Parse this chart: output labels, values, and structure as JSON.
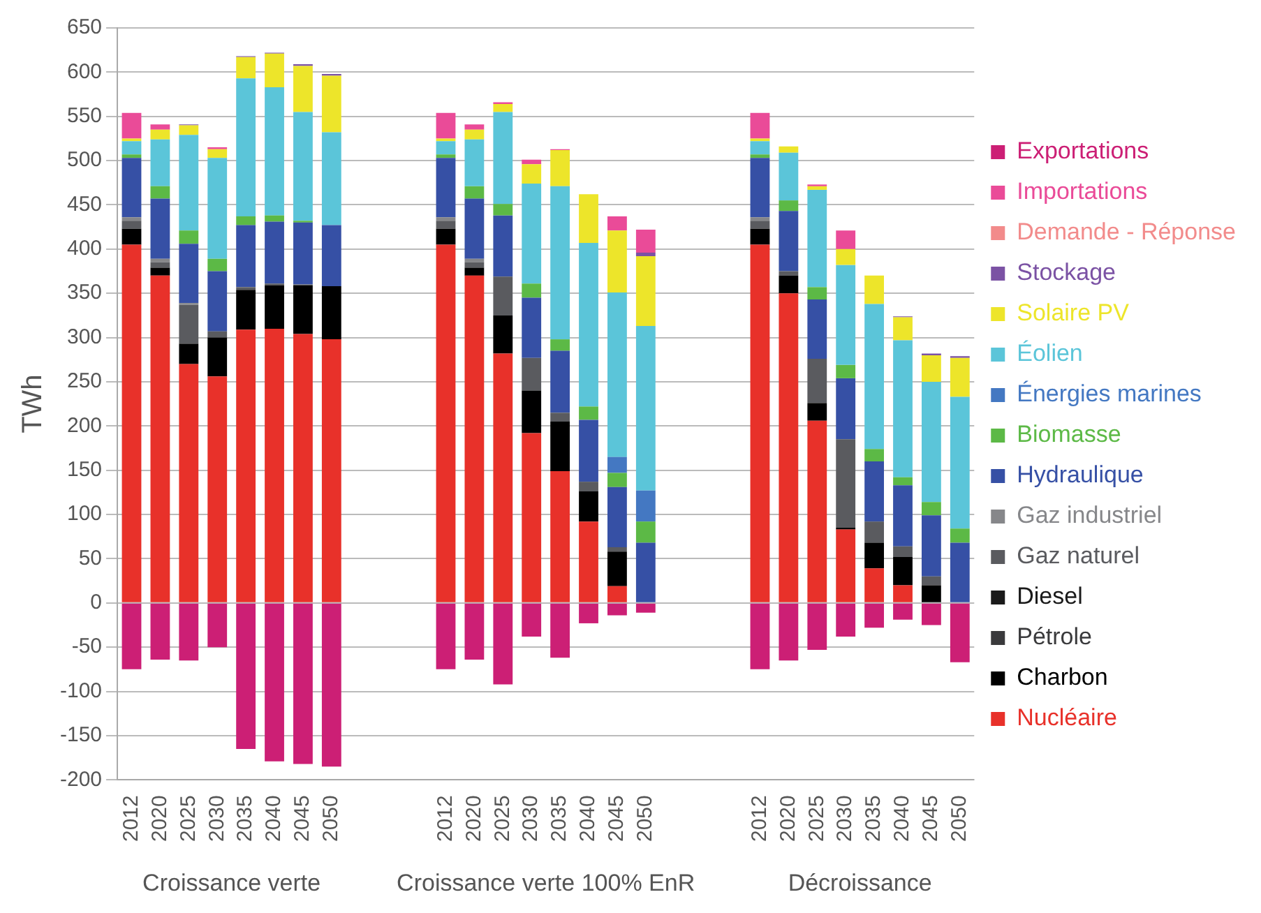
{
  "chart_data": {
    "type": "bar",
    "stacked": true,
    "ylabel": "TWh",
    "grid": "y",
    "legend": "right",
    "categories": [
      "2012",
      "2020",
      "2025",
      "2030",
      "2035",
      "2040",
      "2045",
      "2050",
      null,
      null,
      null,
      "2012",
      "2020",
      "2025",
      "2030",
      "2035",
      "2040",
      "2045",
      "2050",
      null,
      null,
      null,
      "2012",
      "2020",
      "2025",
      "2030",
      "2035",
      "2040",
      "2045",
      "2050"
    ],
    "ylim": [
      -200,
      650
    ],
    "yticks": [
      -200,
      -150,
      -100,
      -50,
      0,
      50,
      100,
      150,
      200,
      250,
      300,
      350,
      400,
      450,
      500,
      550,
      600,
      650
    ],
    "annotations": [
      "Croissance verte",
      "Croissance verte 100% EnR",
      "Décroissance"
    ],
    "series": [
      {
        "name": "Nucléaire",
        "color": "#e8312a",
        "values": [
          405,
          370,
          270,
          256,
          309,
          310,
          304,
          298,
          null,
          null,
          null,
          405,
          370,
          282,
          192,
          149,
          92,
          19,
          null,
          null,
          null,
          null,
          405,
          350,
          206,
          83,
          39,
          20,
          null,
          null
        ]
      },
      {
        "name": "Charbon",
        "color": "#000000",
        "values": [
          18,
          9,
          23,
          44,
          45,
          49,
          55,
          60,
          null,
          null,
          null,
          18,
          9,
          43,
          48,
          56,
          34,
          39,
          null,
          null,
          null,
          null,
          18,
          20,
          20,
          2,
          29,
          32,
          20,
          null
        ]
      },
      {
        "name": "Pétrole",
        "color": "#3a3a3c",
        "values": [
          null,
          null,
          null,
          null,
          null,
          null,
          null,
          null,
          null,
          null,
          null,
          null,
          null,
          null,
          null,
          null,
          null,
          null,
          null,
          null,
          null,
          null,
          null,
          null,
          null,
          null,
          null,
          null,
          null,
          null
        ]
      },
      {
        "name": "Diesel",
        "color": "#1a1a1a",
        "values": [
          null,
          null,
          null,
          null,
          null,
          null,
          null,
          null,
          null,
          null,
          null,
          null,
          null,
          null,
          null,
          null,
          null,
          null,
          null,
          null,
          null,
          null,
          null,
          null,
          null,
          null,
          null,
          null,
          null,
          null
        ]
      },
      {
        "name": "Gaz naturel",
        "color": "#5a5b5f",
        "values": [
          9,
          6,
          44,
          7,
          3,
          2,
          1,
          null,
          null,
          null,
          null,
          9,
          6,
          44,
          37,
          10,
          11,
          5,
          null,
          null,
          null,
          null,
          9,
          5,
          50,
          100,
          24,
          12,
          10,
          null
        ]
      },
      {
        "name": "Gaz industriel",
        "color": "#86878a",
        "values": [
          4,
          4,
          2,
          null,
          null,
          null,
          null,
          null,
          null,
          null,
          null,
          4,
          4,
          null,
          null,
          null,
          null,
          null,
          null,
          null,
          null,
          null,
          4,
          null,
          null,
          null,
          null,
          null,
          null,
          null
        ]
      },
      {
        "name": "Hydraulique",
        "color": "#3650a5",
        "values": [
          67,
          68,
          67,
          68,
          70,
          70,
          70,
          69,
          null,
          null,
          null,
          67,
          68,
          69,
          68,
          70,
          70,
          68,
          68,
          null,
          null,
          null,
          67,
          68,
          67,
          69,
          68,
          69,
          69,
          68
        ]
      },
      {
        "name": "Biomasse",
        "color": "#5cb946",
        "values": [
          4,
          14,
          15,
          14,
          10,
          7,
          2,
          null,
          null,
          null,
          null,
          4,
          14,
          13,
          16,
          13,
          15,
          16,
          24,
          null,
          null,
          null,
          4,
          12,
          14,
          15,
          14,
          9,
          15,
          16
        ]
      },
      {
        "name": "Énergies marines",
        "color": "#4478c2",
        "values": [
          null,
          null,
          null,
          null,
          null,
          null,
          null,
          null,
          null,
          null,
          null,
          null,
          null,
          null,
          null,
          null,
          null,
          18,
          35,
          null,
          null,
          null,
          null,
          null,
          null,
          null,
          null,
          null,
          null,
          null
        ]
      },
      {
        "name": "Éolien",
        "color": "#5bc5d9",
        "values": [
          15,
          53,
          108,
          114,
          156,
          145,
          123,
          105,
          null,
          null,
          null,
          15,
          53,
          104,
          113,
          173,
          185,
          186,
          186,
          null,
          null,
          null,
          15,
          54,
          110,
          113,
          164,
          155,
          136,
          149
        ]
      },
      {
        "name": "Solaire PV",
        "color": "#ede52a",
        "values": [
          3,
          11,
          11,
          10,
          24,
          38,
          52,
          64,
          null,
          null,
          null,
          3,
          11,
          9,
          22,
          41,
          55,
          70,
          79,
          null,
          null,
          null,
          3,
          7,
          4,
          18,
          32,
          26,
          30,
          44
        ]
      },
      {
        "name": "Stockage",
        "color": "#7b52a4",
        "values": [
          null,
          null,
          1,
          null,
          1,
          1,
          2,
          2,
          null,
          null,
          null,
          null,
          null,
          null,
          null,
          null,
          null,
          null,
          4,
          null,
          null,
          null,
          null,
          null,
          null,
          null,
          null,
          1,
          2,
          2
        ]
      },
      {
        "name": "Demande - Réponse",
        "color": "#f28b8b",
        "values": [
          null,
          null,
          null,
          null,
          null,
          null,
          null,
          null,
          null,
          null,
          null,
          null,
          null,
          null,
          null,
          null,
          null,
          null,
          null,
          null,
          null,
          null,
          null,
          null,
          null,
          null,
          null,
          null,
          null,
          null
        ]
      },
      {
        "name": "Importations",
        "color": "#ea4b98",
        "values": [
          29,
          6,
          null,
          2,
          null,
          null,
          null,
          null,
          null,
          null,
          null,
          29,
          6,
          2,
          5,
          1,
          null,
          16,
          26,
          null,
          null,
          null,
          29,
          null,
          2,
          21,
          null,
          null,
          null,
          null
        ]
      },
      {
        "name": "Exportations",
        "color": "#cc1f75",
        "values": [
          -75,
          -64,
          -65,
          -50,
          -165,
          -179,
          -182,
          -185,
          null,
          null,
          null,
          -75,
          -64,
          -92,
          -38,
          -62,
          -23,
          -14,
          -11,
          null,
          null,
          null,
          -75,
          -65,
          -53,
          -38,
          -28,
          -19,
          -25,
          -67
        ]
      }
    ]
  }
}
